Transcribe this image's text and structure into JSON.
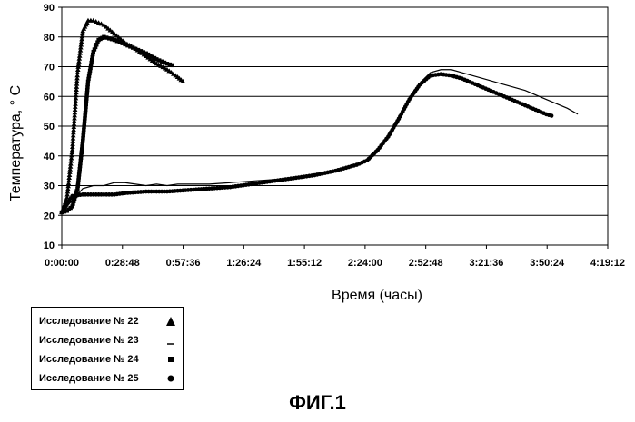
{
  "figure_label": "ФИГ.1",
  "chart_data": {
    "type": "line",
    "title": "",
    "xlabel": "Время (часы)",
    "ylabel": "Температура, ° C",
    "x_unit": "seconds",
    "xlim": [
      0,
      15552
    ],
    "ylim": [
      10,
      90
    ],
    "grid": true,
    "legend_position": "bottom-left",
    "x_ticks": [
      {
        "value": 0,
        "label": "0:00:00"
      },
      {
        "value": 1728,
        "label": "0:28:48"
      },
      {
        "value": 3456,
        "label": "0:57:36"
      },
      {
        "value": 5184,
        "label": "1:26:24"
      },
      {
        "value": 6912,
        "label": "1:55:12"
      },
      {
        "value": 8640,
        "label": "2:24:00"
      },
      {
        "value": 10368,
        "label": "2:52:48"
      },
      {
        "value": 12096,
        "label": "3:21:36"
      },
      {
        "value": 13824,
        "label": "3:50:24"
      },
      {
        "value": 15552,
        "label": "4:19:12"
      }
    ],
    "y_ticks": [
      10,
      20,
      30,
      40,
      50,
      60,
      70,
      80,
      90
    ],
    "series": [
      {
        "name": "Исследование № 22",
        "marker": "triangle",
        "style": "markers",
        "x": [
          0,
          150,
          300,
          450,
          600,
          750,
          900,
          1200,
          1500,
          1800,
          2100,
          2400,
          2700,
          3000,
          3300,
          3450
        ],
        "y": [
          21,
          26,
          42,
          68,
          82,
          85.5,
          85.5,
          84,
          81,
          78,
          76,
          73.5,
          71,
          69,
          66.5,
          65
        ]
      },
      {
        "name": "Исследование № 23",
        "marker": "dash",
        "style": "line",
        "x": [
          0,
          300,
          600,
          900,
          1200,
          1500,
          1800,
          2100,
          2400,
          2700,
          3000,
          3300,
          3600,
          4200,
          4800,
          5400,
          6000,
          6600,
          7200,
          7800,
          8400,
          8700,
          9000,
          9300,
          9600,
          9900,
          10200,
          10500,
          10800,
          11100,
          11400,
          12000,
          12600,
          13200,
          13800,
          14400,
          14700
        ],
        "y": [
          21,
          25,
          29,
          30,
          30,
          31,
          31,
          30.5,
          30,
          30.5,
          30,
          30.5,
          30.5,
          30.5,
          31,
          31.5,
          32,
          32.5,
          33.5,
          35,
          37,
          38.5,
          42,
          46.5,
          52.5,
          59,
          64.5,
          68,
          69,
          69,
          68,
          66,
          64,
          62,
          59,
          56,
          54
        ]
      },
      {
        "name": "Исследование № 24",
        "marker": "square",
        "style": "markers",
        "x": [
          0,
          150,
          300,
          450,
          600,
          750,
          900,
          1050,
          1200,
          1500,
          1800,
          2100,
          2400,
          2700,
          3000,
          3150
        ],
        "y": [
          21,
          21.5,
          23,
          29,
          45,
          65,
          75,
          79,
          80,
          79,
          77.5,
          76,
          74.5,
          72.5,
          71,
          70.5
        ]
      },
      {
        "name": "Исследование № 25",
        "marker": "circle",
        "style": "markers",
        "x": [
          0,
          300,
          600,
          900,
          1200,
          1500,
          1800,
          2400,
          3000,
          3600,
          4200,
          4800,
          5400,
          6000,
          6600,
          7200,
          7800,
          8400,
          8700,
          9000,
          9300,
          9600,
          9900,
          10200,
          10500,
          10800,
          11100,
          11400,
          11700,
          12000,
          12300,
          12600,
          12900,
          13200,
          13500,
          13800,
          13950
        ],
        "y": [
          21,
          26.5,
          27,
          27,
          27,
          27,
          27.5,
          28,
          28,
          28.5,
          29,
          29.5,
          30.5,
          31.5,
          32.5,
          33.5,
          35,
          37,
          38.5,
          42,
          46.5,
          52.5,
          59,
          64,
          67,
          67.5,
          67,
          66,
          64.5,
          63,
          61.5,
          60,
          58.5,
          57,
          55.5,
          54,
          53.5
        ]
      }
    ]
  }
}
